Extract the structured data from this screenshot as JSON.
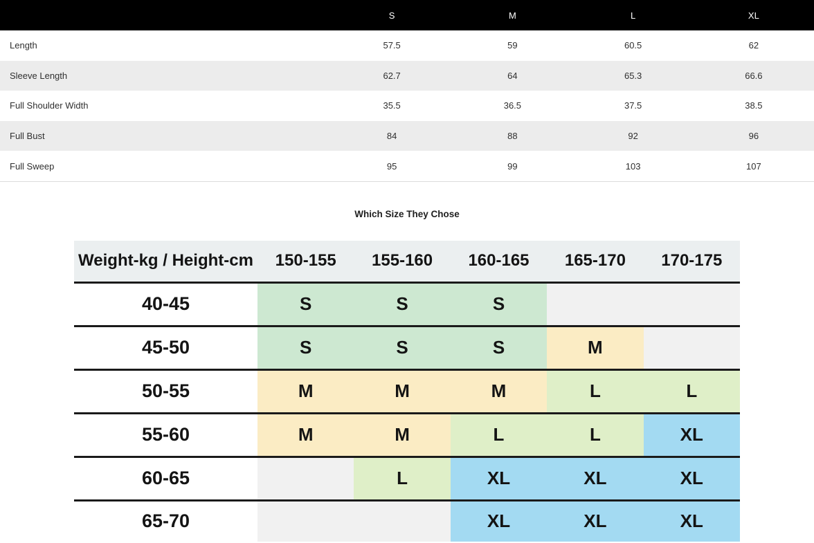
{
  "measurement_table": {
    "sizes": [
      "S",
      "M",
      "L",
      "XL"
    ],
    "rows": [
      {
        "label": "Length",
        "values": [
          "57.5",
          "59",
          "60.5",
          "62"
        ]
      },
      {
        "label": "Sleeve Length",
        "values": [
          "62.7",
          "64",
          "65.3",
          "66.6"
        ]
      },
      {
        "label": "Full Shoulder Width",
        "values": [
          "35.5",
          "36.5",
          "37.5",
          "38.5"
        ]
      },
      {
        "label": "Full Bust",
        "values": [
          "84",
          "88",
          "92",
          "96"
        ]
      },
      {
        "label": "Full Sweep",
        "values": [
          "95",
          "99",
          "103",
          "107"
        ]
      }
    ]
  },
  "size_chart": {
    "title": "Which Size They Chose",
    "corner_label": "Weight-kg / Height-cm",
    "height_columns": [
      "150-155",
      "155-160",
      "160-165",
      "165-170",
      "170-175"
    ],
    "rows": [
      {
        "weight": "40-45",
        "cells": [
          {
            "size": "S",
            "fill": "mint"
          },
          {
            "size": "S",
            "fill": "mint"
          },
          {
            "size": "S",
            "fill": "mint"
          },
          {
            "size": "",
            "fill": "empty"
          },
          {
            "size": "",
            "fill": "empty"
          }
        ]
      },
      {
        "weight": "45-50",
        "cells": [
          {
            "size": "S",
            "fill": "mint"
          },
          {
            "size": "S",
            "fill": "mint"
          },
          {
            "size": "S",
            "fill": "mint"
          },
          {
            "size": "M",
            "fill": "yellow"
          },
          {
            "size": "",
            "fill": "empty"
          }
        ]
      },
      {
        "weight": "50-55",
        "cells": [
          {
            "size": "M",
            "fill": "yellow"
          },
          {
            "size": "M",
            "fill": "yellow"
          },
          {
            "size": "M",
            "fill": "yellow"
          },
          {
            "size": "L",
            "fill": "lime"
          },
          {
            "size": "L",
            "fill": "lime"
          }
        ]
      },
      {
        "weight": "55-60",
        "cells": [
          {
            "size": "M",
            "fill": "yellow"
          },
          {
            "size": "M",
            "fill": "yellow"
          },
          {
            "size": "L",
            "fill": "lime"
          },
          {
            "size": "L",
            "fill": "lime"
          },
          {
            "size": "XL",
            "fill": "blue"
          }
        ]
      },
      {
        "weight": "60-65",
        "cells": [
          {
            "size": "",
            "fill": "empty"
          },
          {
            "size": "L",
            "fill": "lime"
          },
          {
            "size": "XL",
            "fill": "blue"
          },
          {
            "size": "XL",
            "fill": "blue"
          },
          {
            "size": "XL",
            "fill": "blue"
          }
        ]
      },
      {
        "weight": "65-70",
        "cells": [
          {
            "size": "",
            "fill": "empty"
          },
          {
            "size": "",
            "fill": "empty"
          },
          {
            "size": "XL",
            "fill": "blue"
          },
          {
            "size": "XL",
            "fill": "blue"
          },
          {
            "size": "XL",
            "fill": "blue"
          }
        ]
      }
    ]
  },
  "colors": {
    "top_header_bg": "#000000",
    "top_header_text": "#ffffff",
    "row_stripe": "#ececec",
    "chart_header_bg": "#ebeff0",
    "mint": "#cde8d1",
    "yellow": "#fbecc4",
    "lime": "#dfefc8",
    "blue": "#a3daf2",
    "empty": "#f1f1f1"
  }
}
